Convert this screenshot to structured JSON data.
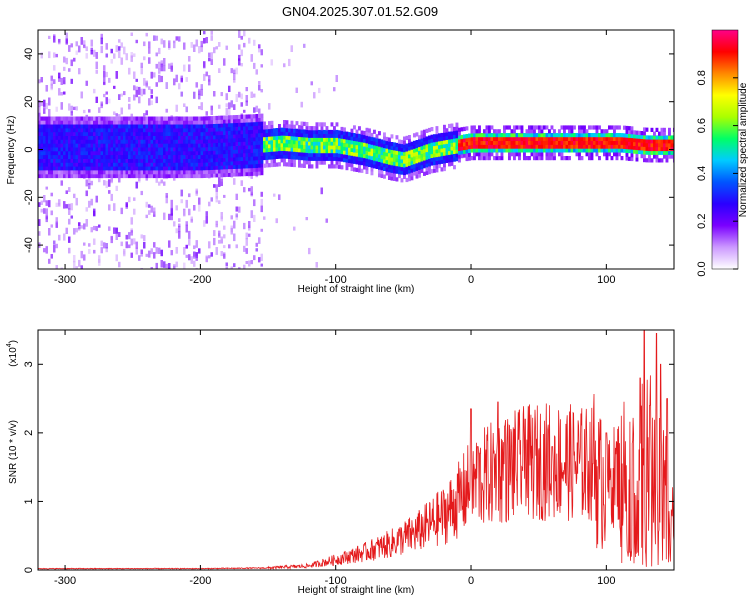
{
  "title": "GN04.2025.307.01.52.G09",
  "chart_data": [
    {
      "type": "heatmap",
      "name": "spectrogram",
      "xlabel": "Height of straight line (km)",
      "ylabel": "Frequency (Hz)",
      "xlim": [
        -320,
        150
      ],
      "ylim": [
        -50,
        50
      ],
      "xticks": [
        -300,
        -200,
        -100,
        0,
        100
      ],
      "yticks": [
        -40,
        -20,
        0,
        20,
        40
      ],
      "colorbar": {
        "label": "Normalized spectral amplitude",
        "range": [
          0,
          1
        ],
        "ticks": [
          "0.0",
          "0.2",
          "0.4",
          "0.6",
          "0.8"
        ],
        "colors": [
          "#ffffff",
          "#cc99ff",
          "#7a00ff",
          "#2a00ff",
          "#0055ff",
          "#00ccff",
          "#00ff66",
          "#aaff00",
          "#ffff00",
          "#ff8800",
          "#ff0000",
          "#ff0088"
        ]
      },
      "ridge": {
        "x": [
          -320,
          -250,
          -200,
          -160,
          -140,
          -120,
          -100,
          -80,
          -60,
          -50,
          -40,
          -30,
          -20,
          -10,
          0,
          30,
          60,
          90,
          110,
          130,
          150
        ],
        "y": [
          1,
          1,
          1,
          2,
          3,
          2,
          2,
          0,
          -3,
          -4,
          -2,
          0,
          1,
          2,
          3,
          3,
          3,
          3,
          3,
          2,
          2
        ]
      }
    },
    {
      "type": "line",
      "name": "snr",
      "xlabel": "Height of straight line (km)",
      "ylabel": "SNR (10 * v/v)",
      "yscale_label": "(x10",
      "yscale_exp": "4",
      "xlim": [
        -320,
        150
      ],
      "ylim": [
        0,
        3.5
      ],
      "xticks": [
        -300,
        -200,
        -100,
        0,
        100
      ],
      "yticks": [
        0,
        1,
        2,
        3
      ],
      "color": "#e41a1c",
      "envelope": {
        "x": [
          -320,
          -200,
          -150,
          -120,
          -100,
          -80,
          -60,
          -40,
          -20,
          -10,
          0,
          10,
          20,
          30,
          40,
          60,
          80,
          90,
          95,
          100,
          110,
          120,
          125,
          130,
          135,
          140,
          145,
          150
        ],
        "y": [
          0.02,
          0.02,
          0.03,
          0.06,
          0.15,
          0.25,
          0.38,
          0.55,
          0.8,
          1.0,
          1.25,
          1.35,
          1.45,
          1.5,
          1.55,
          1.6,
          1.55,
          1.55,
          1.3,
          1.2,
          1.5,
          1.3,
          1.4,
          1.6,
          1.5,
          1.3,
          1.1,
          0.8
        ]
      },
      "peaks": {
        "x": [
          -10,
          0,
          5,
          20,
          25,
          40,
          60,
          90,
          100,
          125,
          128,
          132,
          137,
          140,
          145
        ],
        "y": [
          1.4,
          2.35,
          1.8,
          2.45,
          2.1,
          2.2,
          1.8,
          1.55,
          2.0,
          2.8,
          3.5,
          2.4,
          3.45,
          3.0,
          2.5
        ]
      }
    }
  ]
}
